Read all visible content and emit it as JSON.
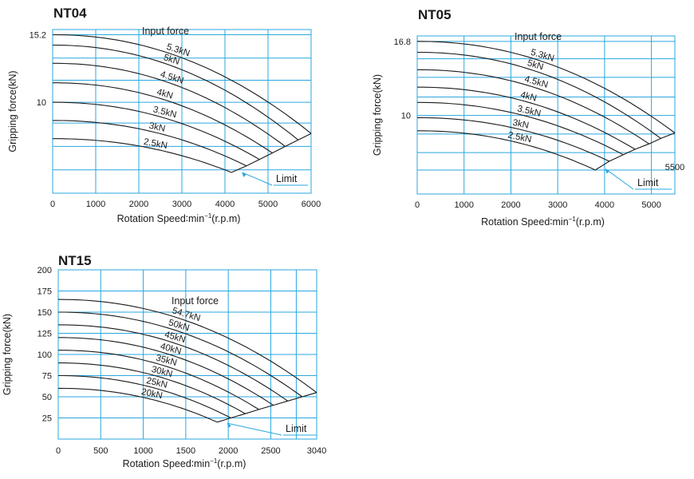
{
  "chart_data": [
    {
      "type": "line",
      "title": "NT04",
      "xlabel": "Rotation Speed",
      "xunit_base": "min",
      "xunit_sup": "−1",
      "xunit_tail": "(r.p.m)",
      "ylabel": "Gripping force(kN)",
      "xlim": [
        0,
        6000
      ],
      "ylim": [
        3,
        15.6
      ],
      "x_ticks": [
        "0",
        "1000",
        "2000",
        "3000",
        "4000",
        "5000",
        "6000"
      ],
      "x_tick_values": [
        0,
        1000,
        2000,
        3000,
        4000,
        5000,
        6000
      ],
      "y_ticks": [
        "15.2",
        "10"
      ],
      "y_tick_values": [
        15.2,
        10
      ],
      "y_grid": [
        4.8,
        6.6,
        8.4,
        10,
        11.7,
        13.4,
        15.2
      ],
      "x_grid": [
        0,
        1000,
        2000,
        3000,
        4000,
        5000,
        6000
      ],
      "annotation_input": "Input  force",
      "annotation_limit": "Limit",
      "series": [
        {
          "name": "5.3kN",
          "y0": 15.2,
          "x_limit": 6000,
          "y_limit": 7.6
        },
        {
          "name": "5kN",
          "y0": 14.4,
          "x_limit": 5700,
          "y_limit": 7.1
        },
        {
          "name": "4.5kN",
          "y0": 13.0,
          "x_limit": 5400,
          "y_limit": 6.6
        },
        {
          "name": "4kN",
          "y0": 11.5,
          "x_limit": 5100,
          "y_limit": 6.1
        },
        {
          "name": "3.5kN",
          "y0": 10.0,
          "x_limit": 4800,
          "y_limit": 5.6
        },
        {
          "name": "3kN",
          "y0": 8.6,
          "x_limit": 4500,
          "y_limit": 5.1
        },
        {
          "name": "2.5kN",
          "y0": 7.2,
          "x_limit": 4150,
          "y_limit": 4.6
        }
      ]
    },
    {
      "type": "line",
      "title": "NT05",
      "xlabel": "Rotation Speed",
      "xunit_base": "min",
      "xunit_sup": "−1",
      "xunit_tail": "(r.p.m)",
      "ylabel": "Gripping force(kN)",
      "xlim": [
        0,
        5500
      ],
      "ylim": [
        2.8,
        17.3
      ],
      "x_ticks": [
        "0",
        "1000",
        "2000",
        "3000",
        "4000",
        "5000"
      ],
      "x_tick_values": [
        0,
        1000,
        2000,
        3000,
        4000,
        5000
      ],
      "y_ticks": [
        "16.8",
        "10"
      ],
      "y_tick_values": [
        16.8,
        10
      ],
      "y_grid": [
        5.0,
        6.6,
        8.3,
        10,
        11.7,
        13.5,
        15.2,
        16.8
      ],
      "x_grid": [
        0,
        1000,
        2000,
        3000,
        4000,
        5000,
        5500
      ],
      "extra_label": "5500",
      "annotation_input": "Input  force",
      "annotation_limit": "Limit",
      "series": [
        {
          "name": "5.3kN",
          "y0": 16.8,
          "x_limit": 5500,
          "y_limit": 8.4
        },
        {
          "name": "5kN",
          "y0": 15.8,
          "x_limit": 5200,
          "y_limit": 7.9
        },
        {
          "name": "4.5kN",
          "y0": 14.2,
          "x_limit": 4950,
          "y_limit": 7.4
        },
        {
          "name": "4kN",
          "y0": 12.6,
          "x_limit": 4650,
          "y_limit": 6.9
        },
        {
          "name": "3.5kN",
          "y0": 11.2,
          "x_limit": 4400,
          "y_limit": 6.4
        },
        {
          "name": "3kN",
          "y0": 9.8,
          "x_limit": 4100,
          "y_limit": 5.8
        },
        {
          "name": "2.5kN",
          "y0": 8.6,
          "x_limit": 3800,
          "y_limit": 5.0
        }
      ]
    },
    {
      "type": "line",
      "title": "NT15",
      "xlabel": "Rotation Speed",
      "xunit_base": "min",
      "xunit_sup": "−1",
      "xunit_tail": "(r.p.m)",
      "ylabel": "Gripping force(kN)",
      "xlim": [
        0,
        3040
      ],
      "ylim": [
        0,
        200
      ],
      "x_ticks": [
        "0",
        "500",
        "1000",
        "1500",
        "2000",
        "2500",
        "3040"
      ],
      "x_tick_values": [
        0,
        500,
        1000,
        1500,
        2000,
        2500,
        3040
      ],
      "y_ticks": [
        "200",
        "175",
        "150",
        "125",
        "100",
        "75",
        "50",
        "25"
      ],
      "y_tick_values": [
        200,
        175,
        150,
        125,
        100,
        75,
        50,
        25
      ],
      "y_grid": [
        25,
        50,
        75,
        100,
        125,
        150,
        175,
        200
      ],
      "x_grid": [
        0,
        500,
        1000,
        1500,
        2000,
        2500,
        2800,
        3040
      ],
      "annotation_input": "Input  force",
      "annotation_limit": "Limit",
      "series": [
        {
          "name": "54.7kN",
          "y0": 165,
          "x_limit": 3040,
          "y_limit": 55
        },
        {
          "name": "50kN",
          "y0": 150,
          "x_limit": 2870,
          "y_limit": 50
        },
        {
          "name": "45kN",
          "y0": 135,
          "x_limit": 2700,
          "y_limit": 45
        },
        {
          "name": "40kN",
          "y0": 120,
          "x_limit": 2530,
          "y_limit": 40
        },
        {
          "name": "35kN",
          "y0": 105,
          "x_limit": 2360,
          "y_limit": 35
        },
        {
          "name": "30kN",
          "y0": 90,
          "x_limit": 2200,
          "y_limit": 30
        },
        {
          "name": "25kN",
          "y0": 75,
          "x_limit": 2030,
          "y_limit": 25
        },
        {
          "name": "20kN",
          "y0": 60,
          "x_limit": 1870,
          "y_limit": 20
        }
      ]
    }
  ]
}
